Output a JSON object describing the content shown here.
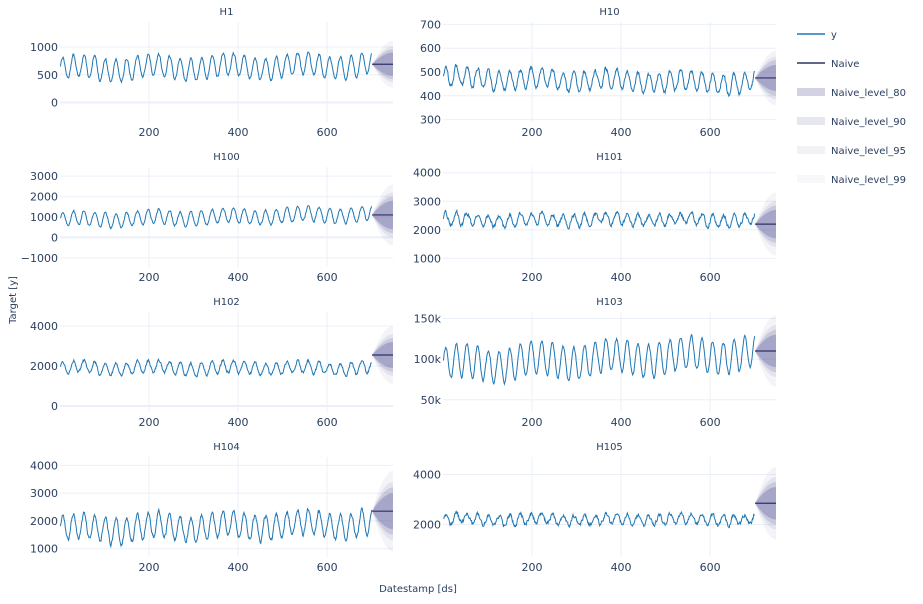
{
  "figure": {
    "xlabel": "Datestamp [ds]",
    "ylabel": "Target [y]",
    "colors": {
      "y": "#1f77b4",
      "naive": "#2e3266",
      "band": "#4b4b8f",
      "grid": "#ebf0f8",
      "text": "#2a3f5f"
    }
  },
  "legend": {
    "placement": "right",
    "items": [
      {
        "label": "y",
        "kind": "line",
        "color": "#1f77b4"
      },
      {
        "label": "Naive",
        "kind": "line",
        "color": "#2e3266"
      },
      {
        "label": "Naive_level_80",
        "kind": "band",
        "opacity": 0.25
      },
      {
        "label": "Naive_level_90",
        "kind": "band",
        "opacity": 0.14
      },
      {
        "label": "Naive_level_95",
        "kind": "band",
        "opacity": 0.08
      },
      {
        "label": "Naive_level_99",
        "kind": "band",
        "opacity": 0.04
      }
    ]
  },
  "chart_data": [
    {
      "type": "line",
      "title": "H1",
      "xlim": [
        0,
        748
      ],
      "xticks": [
        200,
        400,
        600
      ],
      "ylim": [
        -350,
        1450
      ],
      "yticks": [
        0,
        500,
        1000
      ],
      "ytick_labels": [
        "0",
        "500",
        "1000"
      ],
      "series_gen": {
        "n": 700,
        "base": 640,
        "amp": 200,
        "period": 24,
        "trend": 0.1,
        "noise": 40
      },
      "forecast": {
        "start": 701,
        "end": 748,
        "value": 690,
        "levels": {
          "80": [
            480,
            900
          ],
          "90": [
            420,
            960
          ],
          "95": [
            370,
            1010
          ],
          "99": [
            270,
            1110
          ]
        }
      }
    },
    {
      "type": "line",
      "title": "H10",
      "xlim": [
        0,
        748
      ],
      "xticks": [
        200,
        400,
        600
      ],
      "ylim": [
        290,
        710
      ],
      "yticks": [
        300,
        400,
        500,
        600,
        700
      ],
      "ytick_labels": [
        "300",
        "400",
        "500",
        "600",
        "700"
      ],
      "series_gen": {
        "n": 700,
        "base": 465,
        "amp": 40,
        "period": 24,
        "trend": -0.03,
        "noise": 15
      },
      "forecast": {
        "start": 701,
        "end": 748,
        "value": 475,
        "levels": {
          "80": [
            420,
            530
          ],
          "90": [
            400,
            550
          ],
          "95": [
            385,
            565
          ],
          "99": [
            360,
            590
          ]
        }
      }
    },
    {
      "type": "line",
      "title": "H100",
      "xlim": [
        0,
        748
      ],
      "xticks": [
        200,
        400,
        600
      ],
      "ylim": [
        -1450,
        3450
      ],
      "yticks": [
        -1000,
        0,
        1000,
        2000,
        3000
      ],
      "ytick_labels": [
        "−1000",
        "0",
        "1000",
        "2000",
        "3000"
      ],
      "series_gen": {
        "n": 700,
        "base": 1000,
        "amp": 350,
        "period": 24,
        "trend": 0.4,
        "noise": 80
      },
      "forecast": {
        "start": 701,
        "end": 748,
        "value": 1100,
        "levels": {
          "80": [
            400,
            1800
          ],
          "90": [
            200,
            2000
          ],
          "95": [
            0,
            2200
          ],
          "99": [
            -400,
            2600
          ]
        }
      }
    },
    {
      "type": "line",
      "title": "H101",
      "xlim": [
        0,
        748
      ],
      "xticks": [
        200,
        400,
        600
      ],
      "ylim": [
        700,
        4200
      ],
      "yticks": [
        1000,
        2000,
        3000,
        4000
      ],
      "ytick_labels": [
        "1000",
        "2000",
        "3000",
        "4000"
      ],
      "series_gen": {
        "n": 700,
        "base": 2350,
        "amp": 200,
        "period": 24,
        "trend": 0,
        "noise": 120
      },
      "forecast": {
        "start": 701,
        "end": 748,
        "value": 2200,
        "levels": {
          "80": [
            1700,
            2700
          ],
          "90": [
            1550,
            2850
          ],
          "95": [
            1400,
            3000
          ],
          "99": [
            1100,
            3300
          ]
        }
      }
    },
    {
      "type": "line",
      "title": "H102",
      "xlim": [
        0,
        748
      ],
      "xticks": [
        200,
        400,
        600
      ],
      "ylim": [
        -300,
        4700
      ],
      "yticks": [
        0,
        2000,
        4000
      ],
      "ytick_labels": [
        "0",
        "2000",
        "4000"
      ],
      "series_gen": {
        "n": 700,
        "base": 1900,
        "amp": 300,
        "period": 24,
        "trend": 0,
        "noise": 120
      },
      "forecast": {
        "start": 701,
        "end": 748,
        "value": 2550,
        "levels": {
          "80": [
            1900,
            3200
          ],
          "90": [
            1700,
            3400
          ],
          "95": [
            1500,
            3600
          ],
          "99": [
            1100,
            4000
          ]
        }
      }
    },
    {
      "type": "line",
      "title": "H103",
      "xlim": [
        0,
        748
      ],
      "xticks": [
        200,
        400,
        600
      ],
      "ylim": [
        35000,
        158000
      ],
      "yticks": [
        50000,
        100000,
        150000
      ],
      "ytick_labels": [
        "50k",
        "100k",
        "150k"
      ],
      "series_gen": {
        "n": 700,
        "base": 100000,
        "amp": 20000,
        "period": 24,
        "trend": 20,
        "noise": 3000
      },
      "forecast": {
        "start": 701,
        "end": 748,
        "value": 110000,
        "levels": {
          "80": [
            90000,
            130000
          ],
          "90": [
            84000,
            136000
          ],
          "95": [
            78000,
            142000
          ],
          "99": [
            66000,
            154000
          ]
        }
      }
    },
    {
      "type": "line",
      "title": "H104",
      "xlim": [
        0,
        748
      ],
      "xticks": [
        200,
        400,
        600
      ],
      "ylim": [
        700,
        4300
      ],
      "yticks": [
        1000,
        2000,
        3000,
        4000
      ],
      "ytick_labels": [
        "1000",
        "2000",
        "3000",
        "4000"
      ],
      "series_gen": {
        "n": 700,
        "base": 1800,
        "amp": 450,
        "period": 24,
        "trend": 0.3,
        "noise": 120
      },
      "forecast": {
        "start": 701,
        "end": 748,
        "value": 2350,
        "levels": {
          "80": [
            1700,
            3000
          ],
          "90": [
            1500,
            3200
          ],
          "95": [
            1300,
            3400
          ],
          "99": [
            900,
            3800
          ]
        }
      }
    },
    {
      "type": "line",
      "title": "H105",
      "xlim": [
        0,
        748
      ],
      "xticks": [
        200,
        400,
        600
      ],
      "ylim": [
        700,
        4700
      ],
      "yticks": [
        2000,
        4000
      ],
      "ytick_labels": [
        "2000",
        "4000"
      ],
      "series_gen": {
        "n": 700,
        "base": 2200,
        "amp": 200,
        "period": 24,
        "trend": 0,
        "noise": 130
      },
      "forecast": {
        "start": 701,
        "end": 748,
        "value": 2850,
        "levels": {
          "80": [
            2200,
            3500
          ],
          "90": [
            2000,
            3700
          ],
          "95": [
            1800,
            3900
          ],
          "99": [
            1400,
            4300
          ]
        }
      }
    }
  ]
}
